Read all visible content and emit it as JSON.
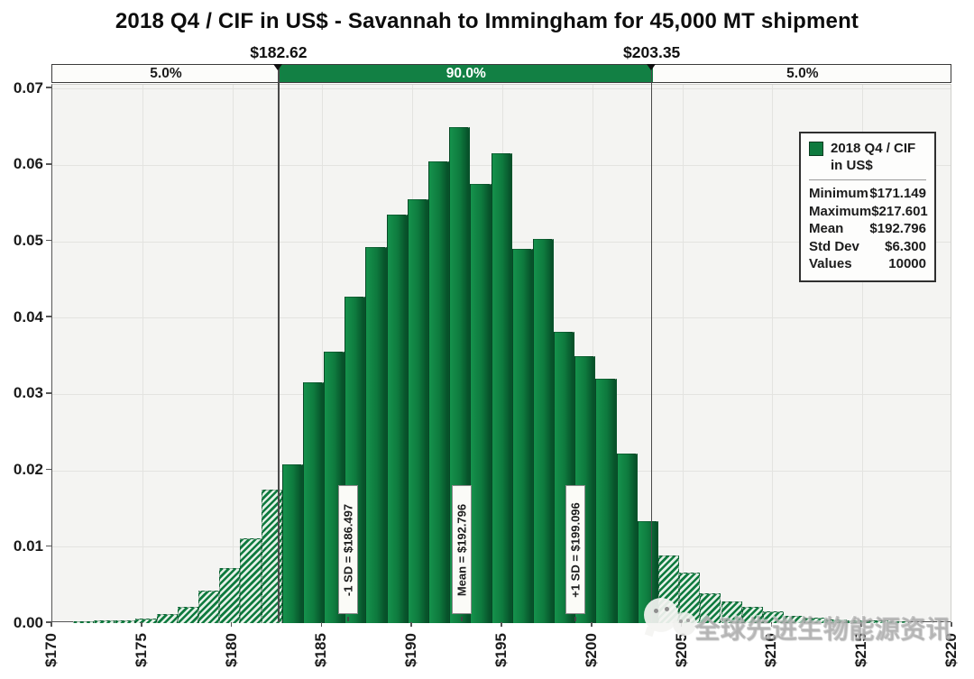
{
  "title": "2018 Q4 / CIF in US$ - Savannah to Immingham for 45,000 MT shipment",
  "band": {
    "segments": [
      {
        "label": "5.0%"
      },
      {
        "label": "90.0%"
      },
      {
        "label": "5.0%"
      }
    ],
    "delimiters": [
      {
        "label": "$182.62",
        "value": 182.62
      },
      {
        "label": "$203.35",
        "value": 203.35
      }
    ]
  },
  "legend": {
    "series_label": "2018 Q4 / CIF in US$",
    "swatch_color": "#0e7a3e",
    "stats": [
      {
        "label": "Minimum",
        "value": "$171.149"
      },
      {
        "label": "Maximum",
        "value": "$217.601"
      },
      {
        "label": "Mean",
        "value": "$192.796"
      },
      {
        "label": "Std Dev",
        "value": "$6.300"
      },
      {
        "label": "Values",
        "value": "10000"
      }
    ]
  },
  "annotations": [
    {
      "text": "-1 SD = $186.497",
      "value": 186.497
    },
    {
      "text": "Mean = $192.796",
      "value": 192.796
    },
    {
      "text": "+1 SD = $199.096",
      "value": 199.096
    }
  ],
  "watermark": {
    "icon": "wechat-logo",
    "text": "全球先进生物能源资讯"
  },
  "chart_data": {
    "type": "bar",
    "subtype": "histogram",
    "title": "2018 Q4 / CIF in US$ - Savannah to Immingham for 45,000 MT shipment",
    "xlabel": "",
    "ylabel": "",
    "x_axis": {
      "min": 170,
      "max": 220,
      "tick_step": 5,
      "tick_labels": [
        "$170",
        "$175",
        "$180",
        "$185",
        "$190",
        "$195",
        "$200",
        "$205",
        "$210",
        "$215",
        "$220"
      ]
    },
    "y_axis": {
      "min": 0,
      "max": 0.07,
      "tick_step": 0.01,
      "display_max": 0.0705,
      "tick_labels": [
        "0.00",
        "0.01",
        "0.02",
        "0.03",
        "0.04",
        "0.05",
        "0.06",
        "0.07"
      ]
    },
    "grid": true,
    "legend_position": "top-right",
    "bins": {
      "start": 171.149,
      "width": 1.1613,
      "count": 40
    },
    "frequencies": [
      0.0002,
      0.0003,
      0.0004,
      0.0006,
      0.0012,
      0.0021,
      0.0042,
      0.0072,
      0.0111,
      0.0175,
      0.0208,
      0.0315,
      0.0355,
      0.0428,
      0.0493,
      0.0535,
      0.0555,
      0.0605,
      0.065,
      0.0575,
      0.0615,
      0.049,
      0.0503,
      0.0381,
      0.0349,
      0.032,
      0.0222,
      0.0133,
      0.0089,
      0.0066,
      0.0039,
      0.0028,
      0.0021,
      0.0015,
      0.001,
      0.0007,
      0.0005,
      0.0004,
      0.0003,
      0.0002
    ],
    "delimiter_low": 182.62,
    "delimiter_high": 203.35,
    "probability_inside": "90.0%",
    "probability_left_tail": "5.0%",
    "probability_right_tail": "5.0%",
    "sd_markers": {
      "minus_1sd": 186.497,
      "mean": 192.796,
      "plus_1sd": 199.096
    },
    "stats": {
      "minimum": 171.149,
      "maximum": 217.601,
      "mean": 192.796,
      "std_dev": 6.3,
      "values": 10000
    },
    "colors": {
      "bar_solid": "#0e7a3e",
      "bar_light": "#15924c",
      "bar_dark_edge": "#07522a",
      "hatch_bg": "#e4f0e7",
      "band_green": "#128044",
      "plot_bg": "#f4f4f2"
    }
  }
}
